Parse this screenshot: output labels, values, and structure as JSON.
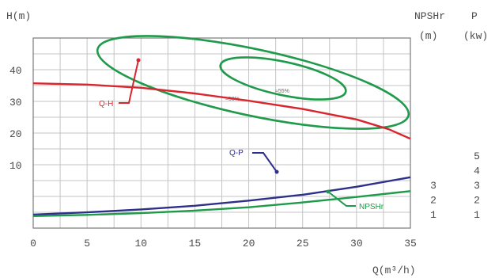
{
  "chart_data": {
    "type": "line",
    "y_axis_label": "H(m)",
    "x_axis_label": "Q(m³/h)",
    "right_axis_labels": {
      "npshr": "NPSHr",
      "npshr_unit": "(m)",
      "power": "P",
      "power_unit": "(kw)"
    },
    "x_ticks": [
      0,
      5,
      10,
      15,
      20,
      25,
      30,
      35
    ],
    "x_range": [
      0,
      35
    ],
    "y_ticks_h": [
      10,
      20,
      30,
      40
    ],
    "y_range_h": [
      0,
      40
    ],
    "npshr_ticks": [
      1,
      2,
      3
    ],
    "power_ticks": [
      1,
      2,
      3,
      4,
      5
    ],
    "grid": true,
    "curves": {
      "qh": {
        "label": "Q-H",
        "color": "#d7262e",
        "points": [
          [
            0,
            35.7
          ],
          [
            5,
            35.3
          ],
          [
            10,
            34.3
          ],
          [
            15,
            32.5
          ],
          [
            20,
            30.2
          ],
          [
            25,
            27.6
          ],
          [
            28,
            25.6
          ],
          [
            30,
            24.3
          ],
          [
            33,
            21.2
          ],
          [
            35,
            18.2
          ]
        ]
      },
      "qp": {
        "label": "Q-P",
        "color": "#2e2f8a",
        "points": [
          [
            0,
            0.95
          ],
          [
            5,
            1.1
          ],
          [
            10,
            1.3
          ],
          [
            15,
            1.55
          ],
          [
            20,
            1.9
          ],
          [
            25,
            2.3
          ],
          [
            30,
            2.85
          ],
          [
            35,
            3.5
          ]
        ]
      },
      "npshr": {
        "label": "NPSHr",
        "color": "#1f9a4a",
        "points": [
          [
            0,
            0.85
          ],
          [
            5,
            0.93
          ],
          [
            10,
            1.05
          ],
          [
            15,
            1.22
          ],
          [
            20,
            1.45
          ],
          [
            25,
            1.78
          ],
          [
            30,
            2.15
          ],
          [
            35,
            2.55
          ]
        ]
      }
    },
    "efficiency_labels": [
      "≈50%",
      "≈55%"
    ]
  },
  "colors": {
    "grid": "#c4c4c4",
    "frame": "#7a7a7a",
    "efficiency": "#1f9a4a"
  }
}
